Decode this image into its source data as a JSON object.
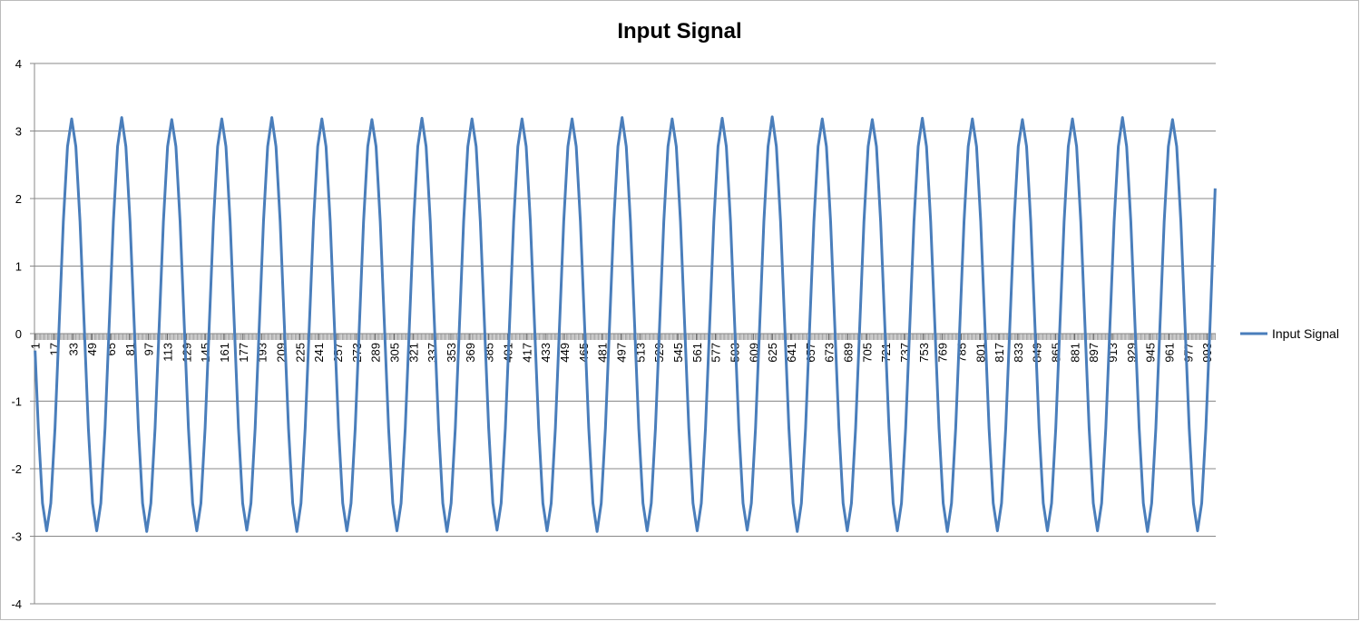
{
  "chart_data": {
    "type": "line",
    "title": "Input Signal",
    "x": [
      1,
      3.75,
      7.28,
      10.81,
      14.34,
      17.87,
      21.4,
      24.93,
      28.46,
      31.99,
      35.52,
      39.05,
      42.58,
      46.11,
      49.64,
      53.17,
      56.7,
      60.23,
      63.76,
      67.29,
      70.82,
      74.35,
      77.88,
      81.41,
      84.94,
      88.47,
      92,
      95.53,
      99.06,
      102.59,
      106.12,
      109.65,
      113.18,
      116.71,
      120.24,
      123.77,
      127.3,
      130.83,
      134.36,
      137.89,
      141.42,
      144.95,
      148.48,
      152.01,
      155.54,
      159.07,
      162.6,
      166.13,
      169.66,
      173.19,
      176.72,
      180.25,
      183.78,
      187.31,
      190.84,
      194.37,
      197.9,
      201.43,
      204.96,
      208.49,
      212.02,
      215.55,
      219.08,
      222.61,
      226.14,
      229.67,
      233.2,
      236.73,
      240.26,
      243.79,
      247.32,
      250.85,
      254.38,
      257.91,
      261.44,
      264.97,
      268.5,
      272.03,
      275.56,
      279.09,
      282.62,
      286.15,
      289.68,
      293.21,
      296.74,
      300.27,
      303.8,
      307.33,
      310.86,
      314.39,
      317.92,
      321.45,
      324.98,
      328.51,
      332.04,
      335.57,
      339.1,
      342.63,
      346.16,
      349.69,
      353.22,
      356.75,
      360.28,
      363.81,
      367.34,
      370.87,
      374.4,
      377.93,
      381.46,
      384.99,
      388.52,
      392.05,
      395.58,
      399.11,
      402.64,
      406.17,
      409.7,
      413.23,
      416.76,
      420.29,
      423.82,
      427.35,
      430.88,
      434.41,
      437.94,
      441.47,
      445,
      448.53,
      452.06,
      455.59,
      459.12,
      462.65,
      466.18,
      469.71,
      473.24,
      476.77,
      480.3,
      483.83,
      487.36,
      490.89,
      494.42,
      497.95,
      501.48,
      505.01,
      508.54,
      512.07,
      515.6,
      519.13,
      522.66,
      526.19,
      529.72,
      533.25,
      536.78,
      540.31,
      543.84,
      547.37,
      550.9,
      554.43,
      557.96,
      561.49,
      565.02,
      568.55,
      572.08,
      575.61,
      579.14,
      582.67,
      586.2,
      589.73,
      593.26,
      596.79,
      600.32,
      603.85,
      607.38,
      610.91,
      614.44,
      617.97,
      621.5,
      625.03,
      628.56,
      632.09,
      635.62,
      639.15,
      642.68,
      646.21,
      649.74,
      653.27,
      656.8,
      660.33,
      663.86,
      667.39,
      670.92,
      674.45,
      677.98,
      681.51,
      685.04,
      688.57,
      692.1,
      695.63,
      699.16,
      702.69,
      706.22,
      709.75,
      713.28,
      716.81,
      720.34,
      723.87,
      727.4,
      730.93,
      734.46,
      737.99,
      741.52,
      745.05,
      748.58,
      752.11,
      755.64,
      759.17,
      762.7,
      766.23,
      769.76,
      773.29,
      776.82,
      780.35,
      783.88,
      787.41,
      790.94,
      794.47,
      798,
      801.53,
      805.06,
      808.59,
      812.12,
      815.65,
      819.18,
      822.71,
      826.24,
      829.77,
      833.3,
      836.83,
      840.36,
      843.89,
      847.42,
      850.95,
      854.48,
      858.01,
      861.54,
      865.07,
      868.6,
      872.13,
      875.66,
      879.19,
      882.72,
      886.25,
      889.78,
      893.31,
      896.84,
      900.37,
      903.9,
      907.43,
      910.96,
      914.49,
      918.02,
      921.55,
      925.08,
      928.61,
      932.14,
      935.67,
      939.2,
      942.73,
      946.26,
      949.79,
      953.32,
      956.85,
      960.38,
      963.91,
      967.44,
      970.97,
      974.5,
      978.03,
      981.56,
      985.09,
      988.62,
      992.15,
      995.68,
      1000
    ],
    "series": [
      {
        "name": "Input Signal",
        "color": "#4a7ebb",
        "values": [
          -0.25,
          -1.4,
          -2.51,
          -2.92,
          -2.51,
          -1.4,
          0.13,
          1.66,
          2.77,
          3.18,
          2.77,
          1.66,
          0.13,
          -1.4,
          -2.51,
          -2.92,
          -2.51,
          -1.4,
          0.13,
          1.66,
          2.77,
          3.2,
          2.77,
          1.66,
          0.13,
          -1.4,
          -2.51,
          -2.93,
          -2.51,
          -1.4,
          0.13,
          1.66,
          2.77,
          3.17,
          2.77,
          1.66,
          0.13,
          -1.4,
          -2.51,
          -2.92,
          -2.51,
          -1.4,
          0.13,
          1.66,
          2.77,
          3.18,
          2.77,
          1.66,
          0.13,
          -1.4,
          -2.51,
          -2.91,
          -2.51,
          -1.4,
          0.13,
          1.66,
          2.77,
          3.2,
          2.77,
          1.66,
          0.13,
          -1.4,
          -2.51,
          -2.93,
          -2.51,
          -1.4,
          0.13,
          1.66,
          2.77,
          3.18,
          2.77,
          1.66,
          0.13,
          -1.4,
          -2.51,
          -2.92,
          -2.51,
          -1.4,
          0.13,
          1.66,
          2.77,
          3.17,
          2.77,
          1.66,
          0.13,
          -1.4,
          -2.51,
          -2.92,
          -2.51,
          -1.4,
          0.13,
          1.66,
          2.77,
          3.19,
          2.77,
          1.66,
          0.13,
          -1.4,
          -2.51,
          -2.93,
          -2.51,
          -1.4,
          0.13,
          1.66,
          2.77,
          3.18,
          2.77,
          1.66,
          0.13,
          -1.4,
          -2.51,
          -2.91,
          -2.51,
          -1.4,
          0.13,
          1.66,
          2.77,
          3.18,
          2.77,
          1.66,
          0.13,
          -1.4,
          -2.51,
          -2.92,
          -2.51,
          -1.4,
          0.13,
          1.66,
          2.77,
          3.18,
          2.77,
          1.66,
          0.13,
          -1.4,
          -2.51,
          -2.93,
          -2.51,
          -1.4,
          0.13,
          1.66,
          2.77,
          3.2,
          2.77,
          1.66,
          0.13,
          -1.4,
          -2.51,
          -2.92,
          -2.51,
          -1.4,
          0.13,
          1.66,
          2.77,
          3.18,
          2.77,
          1.66,
          0.13,
          -1.4,
          -2.51,
          -2.92,
          -2.51,
          -1.4,
          0.13,
          1.66,
          2.77,
          3.19,
          2.77,
          1.66,
          0.13,
          -1.4,
          -2.51,
          -2.91,
          -2.51,
          -1.4,
          0.13,
          1.66,
          2.77,
          3.21,
          2.77,
          1.66,
          0.13,
          -1.4,
          -2.51,
          -2.93,
          -2.51,
          -1.4,
          0.13,
          1.66,
          2.77,
          3.18,
          2.77,
          1.66,
          0.13,
          -1.4,
          -2.51,
          -2.92,
          -2.51,
          -1.4,
          0.13,
          1.66,
          2.77,
          3.17,
          2.77,
          1.66,
          0.13,
          -1.4,
          -2.51,
          -2.92,
          -2.51,
          -1.4,
          0.13,
          1.66,
          2.77,
          3.19,
          2.77,
          1.66,
          0.13,
          -1.4,
          -2.51,
          -2.93,
          -2.51,
          -1.4,
          0.13,
          1.66,
          2.77,
          3.18,
          2.77,
          1.66,
          0.13,
          -1.4,
          -2.51,
          -2.92,
          -2.51,
          -1.4,
          0.13,
          1.66,
          2.77,
          3.17,
          2.77,
          1.66,
          0.13,
          -1.4,
          -2.51,
          -2.92,
          -2.51,
          -1.4,
          0.13,
          1.66,
          2.77,
          3.18,
          2.77,
          1.66,
          0.13,
          -1.4,
          -2.51,
          -2.92,
          -2.51,
          -1.4,
          0.13,
          1.66,
          2.77,
          3.2,
          2.77,
          1.66,
          0.13,
          -1.4,
          -2.51,
          -2.93,
          -2.51,
          -1.4,
          0.13,
          1.66,
          2.77,
          3.17,
          2.77,
          1.66,
          0.13,
          -1.4,
          -2.51,
          -2.92,
          -2.51,
          -1.4,
          0.13,
          2.15
        ]
      }
    ],
    "xlim": [
      0.5,
      1000.5
    ],
    "xticks": [
      1,
      17,
      33,
      49,
      65,
      81,
      97,
      113,
      129,
      145,
      161,
      177,
      193,
      209,
      225,
      241,
      257,
      273,
      289,
      305,
      321,
      337,
      353,
      369,
      385,
      401,
      417,
      433,
      449,
      465,
      481,
      497,
      513,
      529,
      545,
      561,
      577,
      593,
      609,
      625,
      641,
      657,
      673,
      689,
      705,
      721,
      737,
      753,
      769,
      785,
      801,
      817,
      833,
      849,
      865,
      881,
      897,
      913,
      929,
      945,
      961,
      977,
      993
    ],
    "ylim": [
      -4,
      4
    ],
    "yticks": [
      -4,
      -3,
      -2,
      -1,
      0,
      1,
      2,
      3,
      4
    ],
    "grid": true,
    "legend": "right"
  }
}
